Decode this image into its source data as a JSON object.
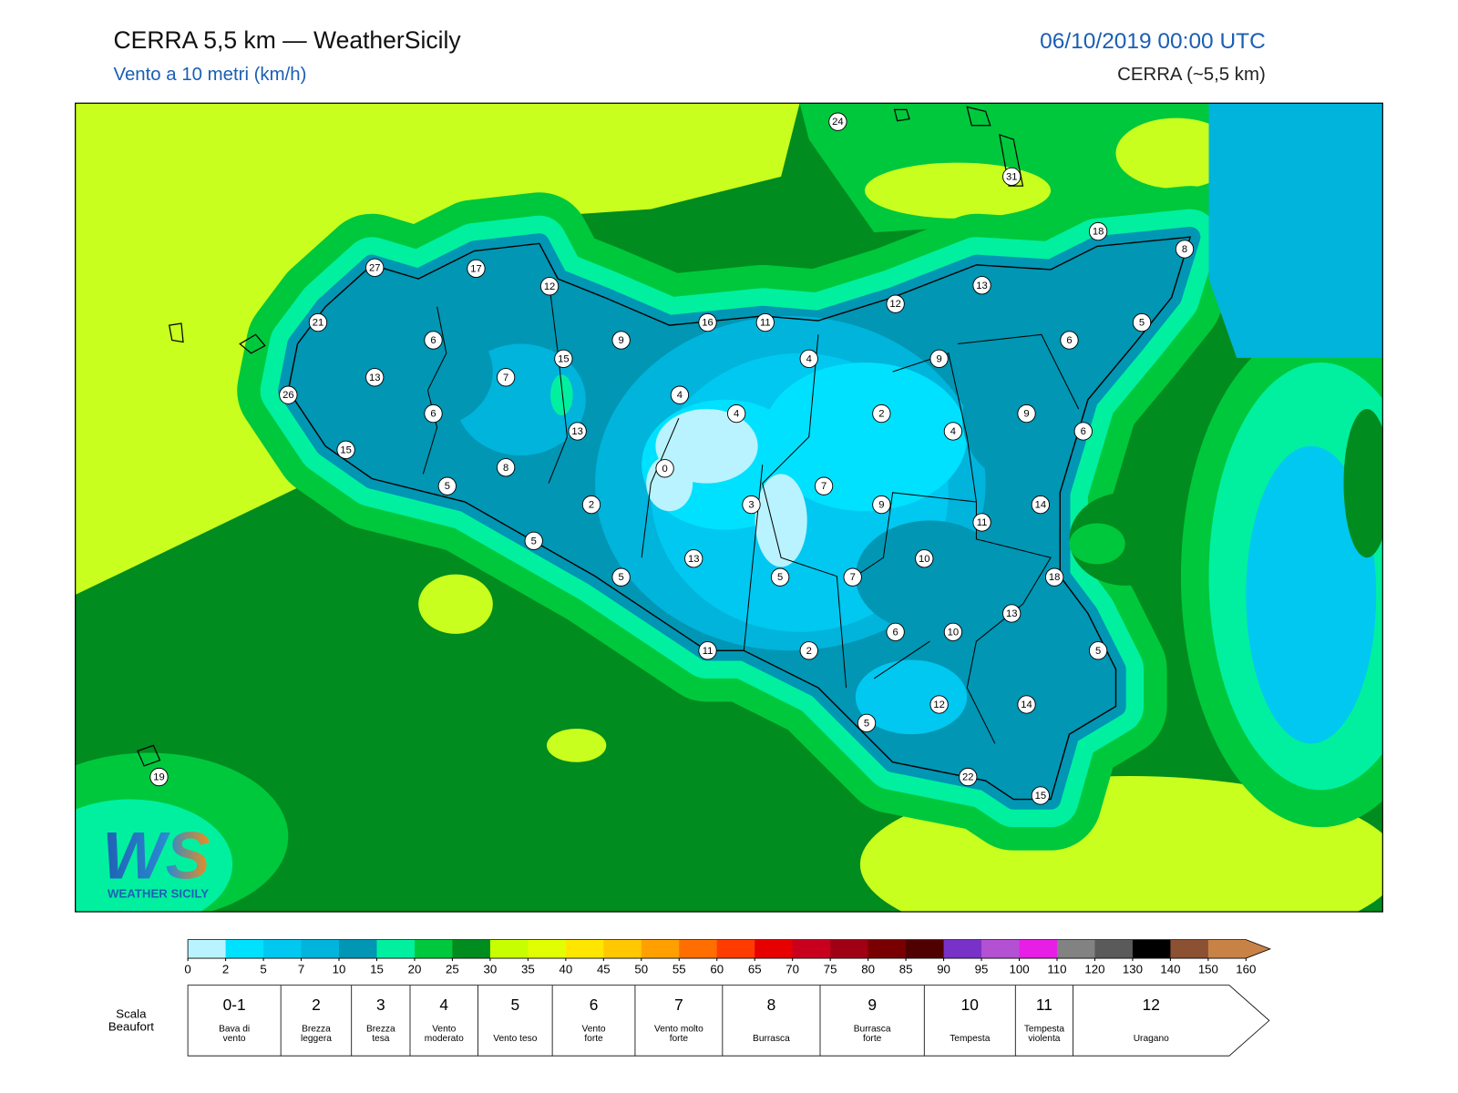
{
  "header": {
    "title": "CERRA 5,5 km — WeatherSicily",
    "subtitle": "Vento a 10 metri (km/h)",
    "date": "06/10/2019 00:00 UTC",
    "model": "CERRA (~5,5 km)"
  },
  "map": {
    "stations": [
      24,
      31,
      18,
      8,
      27,
      17,
      12,
      13,
      12,
      16,
      11,
      5,
      21,
      6,
      9,
      4,
      9,
      6,
      15,
      13,
      7,
      4,
      4,
      2,
      9,
      6,
      26,
      13,
      4,
      6,
      15,
      8,
      0,
      5,
      7,
      2,
      3,
      9,
      14,
      11,
      5,
      13,
      10,
      5,
      5,
      7,
      18,
      13,
      6,
      10,
      11,
      2,
      5,
      12,
      14,
      5,
      22,
      15,
      19
    ],
    "logo": {
      "mark": "WS",
      "name": "WEATHER SICILY"
    }
  },
  "colorbar": {
    "ticks": [
      0,
      2,
      5,
      7,
      10,
      15,
      20,
      25,
      30,
      35,
      40,
      45,
      50,
      55,
      60,
      65,
      70,
      75,
      80,
      85,
      90,
      95,
      100,
      110,
      120,
      130,
      140,
      150,
      160
    ],
    "colors": [
      "#b9f3ff",
      "#00e1ff",
      "#00c8f0",
      "#00b4dc",
      "#0096b4",
      "#00f0a0",
      "#00c83c",
      "#008c1e",
      "#c8ff00",
      "#e1ff00",
      "#ffe600",
      "#ffc800",
      "#ffa000",
      "#ff6e00",
      "#ff3c00",
      "#e60000",
      "#c8001e",
      "#a00014",
      "#780000",
      "#500000",
      "#7832c8",
      "#b450d2",
      "#e61ee6",
      "#828282",
      "#5a5a5a",
      "#000000",
      "#8c5032",
      "#c88246"
    ],
    "over_color": "#c88246"
  },
  "beaufort": {
    "title": [
      "Scala",
      "Beaufort"
    ],
    "levels": [
      {
        "number": "0-1",
        "description": [
          "Bava di",
          "vento"
        ]
      },
      {
        "number": 2,
        "description": [
          "Brezza",
          "leggera"
        ]
      },
      {
        "number": 3,
        "description": [
          "Brezza",
          "tesa"
        ]
      },
      {
        "number": 4,
        "description": [
          "Vento",
          "moderato"
        ]
      },
      {
        "number": 5,
        "description": [
          "Vento teso"
        ]
      },
      {
        "number": 6,
        "description": [
          "Vento",
          "forte"
        ]
      },
      {
        "number": 7,
        "description": [
          "Vento molto",
          "forte"
        ]
      },
      {
        "number": 8,
        "description": [
          "Burrasca"
        ]
      },
      {
        "number": 9,
        "description": [
          "Burrasca",
          "forte"
        ]
      },
      {
        "number": 10,
        "description": [
          "Tempesta"
        ]
      },
      {
        "number": 11,
        "description": [
          "Tempesta",
          "violenta"
        ]
      },
      {
        "number": 12,
        "description": [
          "Uragano"
        ]
      }
    ]
  }
}
